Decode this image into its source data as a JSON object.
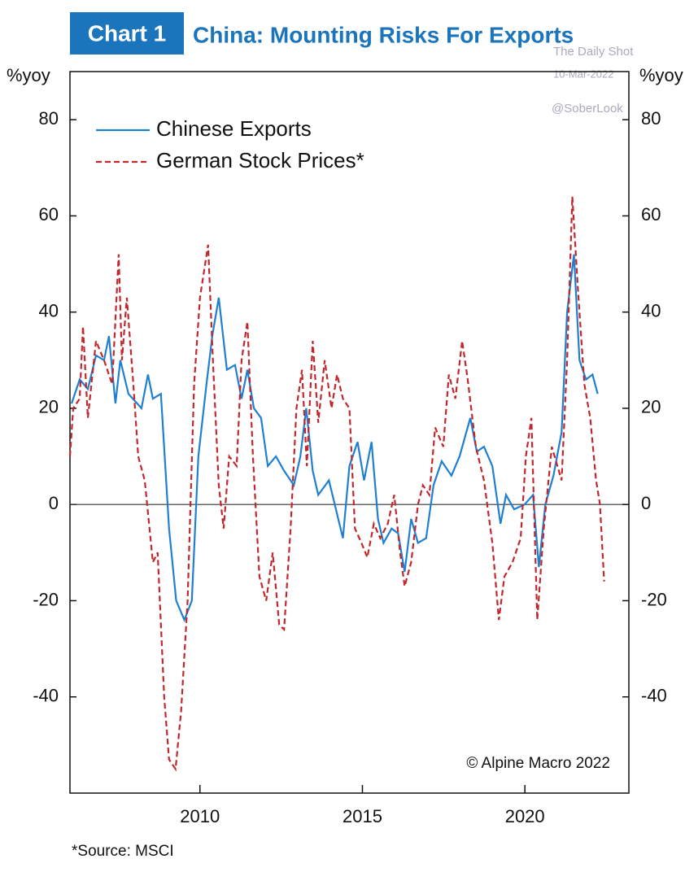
{
  "chart_data": {
    "type": "line",
    "badge": "Chart 1",
    "title": "China: Mounting Risks For Exports",
    "y_label": "%yoy",
    "y2_label": "%yoy",
    "watermark": [
      "The Daily Shot",
      "10-Mar-2022",
      "@SoberLook"
    ],
    "copyright": "© Alpine Macro 2022",
    "source": "*Source: MSCI",
    "xlim": [
      2006,
      2023.2
    ],
    "xticks": [
      2010,
      2015,
      2020
    ],
    "ylim": [
      -60,
      90
    ],
    "yticks": [
      -40,
      -20,
      0,
      20,
      40,
      60,
      80
    ],
    "y2lim": [
      -60,
      90
    ],
    "y2ticks": [
      -40,
      -20,
      0,
      20,
      40,
      60,
      80
    ],
    "legend": "upper left",
    "series": [
      {
        "name": "Chinese Exports",
        "color": "#1f7fd0",
        "dash": false,
        "x": [
          2006.05,
          2006.3,
          2006.55,
          2006.8,
          2007.05,
          2007.2,
          2007.4,
          2007.55,
          2007.8,
          2008.2,
          2008.4,
          2008.55,
          2008.8,
          2009.05,
          2009.27,
          2009.52,
          2009.75,
          2009.95,
          2010.2,
          2010.38,
          2010.58,
          2010.83,
          2011.08,
          2011.28,
          2011.46,
          2011.66,
          2011.88,
          2012.09,
          2012.34,
          2012.59,
          2012.89,
          2013.09,
          2013.27,
          2013.47,
          2013.64,
          2013.97,
          2014.15,
          2014.4,
          2014.6,
          2014.85,
          2015.05,
          2015.28,
          2015.48,
          2015.65,
          2015.9,
          2016.1,
          2016.3,
          2016.5,
          2016.71,
          2016.96,
          2017.19,
          2017.44,
          2017.74,
          2017.99,
          2018.32,
          2018.52,
          2018.74,
          2019.0,
          2019.25,
          2019.42,
          2019.67,
          2019.99,
          2020.25,
          2020.43,
          2020.63,
          2020.88,
          2021.13,
          2021.3,
          2021.51,
          2021.68,
          2021.88,
          2022.08,
          2022.24
        ],
        "values": [
          21,
          26,
          24,
          31,
          30,
          35,
          21,
          30,
          23,
          20,
          27,
          22,
          23,
          -5,
          -20,
          -24,
          -20,
          10,
          25,
          35,
          43,
          28,
          29,
          22,
          28,
          20,
          18,
          8,
          10,
          7,
          4,
          10,
          20,
          7,
          2,
          5,
          0,
          -7,
          8,
          13,
          5,
          13,
          -3,
          -8,
          -5,
          -6,
          -14,
          -3,
          -8,
          -7,
          4,
          9,
          6,
          10,
          18,
          11,
          12,
          8,
          -4,
          2,
          -1,
          0,
          2,
          -13,
          0,
          6,
          15,
          40,
          52,
          30,
          26,
          27,
          23
        ]
      },
      {
        "name": "German Stock Prices*",
        "color": "#c0282d",
        "dash": true,
        "x": [
          2006.0,
          2006.1,
          2006.3,
          2006.4,
          2006.55,
          2006.8,
          2007.05,
          2007.3,
          2007.5,
          2007.6,
          2007.75,
          2007.95,
          2008.1,
          2008.3,
          2008.55,
          2008.7,
          2008.9,
          2009.05,
          2009.25,
          2009.42,
          2009.62,
          2009.82,
          2010.0,
          2010.25,
          2010.4,
          2010.58,
          2010.73,
          2010.9,
          2011.13,
          2011.28,
          2011.46,
          2011.63,
          2011.83,
          2012.04,
          2012.24,
          2012.44,
          2012.59,
          2012.79,
          2012.97,
          2013.14,
          2013.29,
          2013.47,
          2013.64,
          2013.84,
          2014.05,
          2014.22,
          2014.4,
          2014.6,
          2014.77,
          2014.97,
          2015.15,
          2015.35,
          2015.55,
          2015.78,
          2015.98,
          2016.16,
          2016.3,
          2016.5,
          2016.71,
          2016.86,
          2017.06,
          2017.24,
          2017.49,
          2017.66,
          2017.86,
          2018.07,
          2018.24,
          2018.49,
          2018.74,
          2019.0,
          2019.2,
          2019.37,
          2019.62,
          2019.87,
          2020.03,
          2020.2,
          2020.38,
          2020.58,
          2020.83,
          2021.13,
          2021.3,
          2021.46,
          2021.63,
          2021.83,
          2022.01,
          2022.19,
          2022.31,
          2022.44
        ],
        "values": [
          10,
          20,
          22,
          37,
          18,
          34,
          30,
          25,
          52,
          30,
          43,
          25,
          10,
          5,
          -12,
          -10,
          -40,
          -53,
          -55,
          -43,
          -20,
          25,
          43,
          54,
          30,
          4,
          -5,
          10,
          8,
          30,
          38,
          10,
          -15,
          -20,
          -10,
          -25,
          -26,
          -5,
          20,
          28,
          8,
          34,
          17,
          30,
          20,
          27,
          22,
          20,
          -5,
          -8,
          -11,
          -4,
          -7,
          -4,
          2,
          -10,
          -17,
          -12,
          0,
          4,
          2,
          16,
          12,
          27,
          22,
          34,
          26,
          12,
          5,
          -8,
          -24,
          -15,
          -12,
          -7,
          10,
          18,
          -24,
          -5,
          12,
          5,
          30,
          64,
          45,
          25,
          18,
          5,
          0,
          -16
        ]
      }
    ]
  }
}
